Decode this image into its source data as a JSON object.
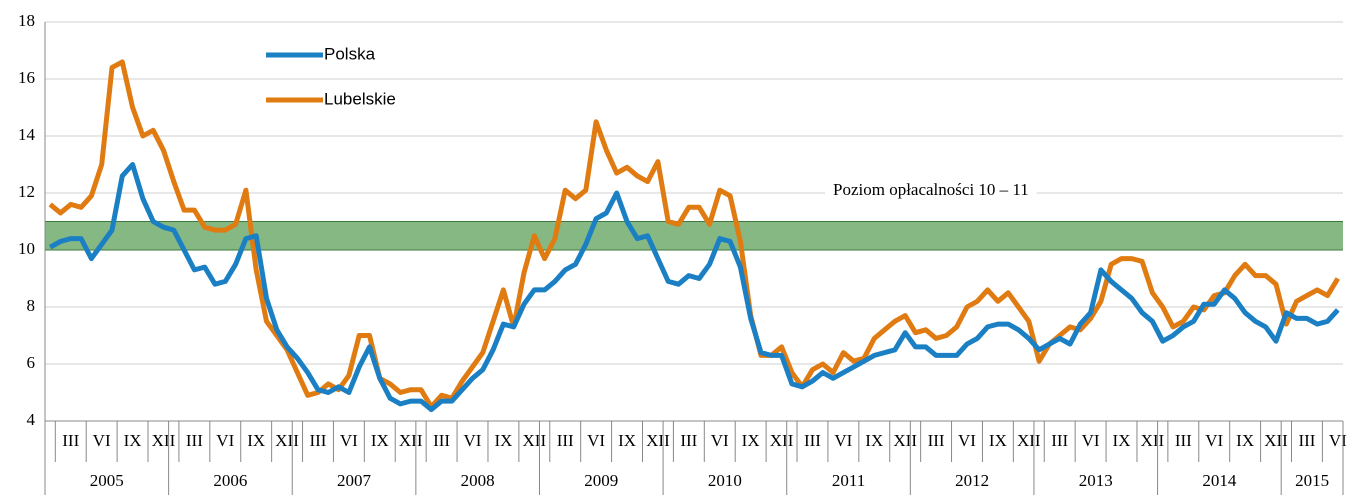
{
  "chart_data": {
    "type": "line",
    "categories": [
      null,
      null,
      "III",
      null,
      null,
      "VI",
      null,
      null,
      "IX",
      null,
      null,
      "XII",
      null,
      null,
      "III",
      null,
      null,
      "VI",
      null,
      null,
      "IX",
      null,
      null,
      "XII",
      null,
      null,
      "III",
      null,
      null,
      "VI",
      null,
      null,
      "IX",
      null,
      null,
      "XII",
      null,
      null,
      "III",
      null,
      null,
      "VI",
      null,
      null,
      "IX",
      null,
      null,
      "XII",
      null,
      null,
      "III",
      null,
      null,
      "VI",
      null,
      null,
      "IX",
      null,
      null,
      "XII",
      null,
      null,
      "III",
      null,
      null,
      "VI",
      null,
      null,
      "IX",
      null,
      null,
      "XII",
      null,
      null,
      "III",
      null,
      null,
      "VI",
      null,
      null,
      "IX",
      null,
      null,
      "XII",
      null,
      null,
      "III",
      null,
      null,
      "VI",
      null,
      null,
      "IX",
      null,
      null,
      "XII",
      null,
      null,
      "III",
      null,
      null,
      "VI",
      null,
      null,
      "IX",
      null,
      null,
      "XII",
      null,
      null,
      "III",
      null,
      null,
      "VI",
      null,
      null,
      "IX",
      null,
      null,
      "XII",
      null,
      null,
      "III",
      null,
      null,
      "VI"
    ],
    "years": [
      "2005",
      "2006",
      "2007",
      "2008",
      "2009",
      "2010",
      "2011",
      "2012",
      "2013",
      "2014",
      "2015"
    ],
    "series": [
      {
        "name": "Polska",
        "color": "#1b7fc4",
        "values": [
          10.1,
          10.3,
          10.4,
          10.4,
          9.7,
          10.2,
          10.7,
          12.6,
          13.0,
          11.8,
          11.0,
          10.8,
          10.7,
          10.0,
          9.3,
          9.4,
          8.8,
          8.9,
          9.5,
          10.4,
          10.5,
          8.3,
          7.2,
          6.6,
          6.2,
          5.7,
          5.1,
          5.0,
          5.2,
          5.0,
          5.9,
          6.6,
          5.5,
          4.8,
          4.6,
          4.7,
          4.7,
          4.4,
          4.7,
          4.7,
          5.1,
          5.5,
          5.8,
          6.5,
          7.4,
          7.3,
          8.1,
          8.6,
          8.6,
          8.9,
          9.3,
          9.5,
          10.2,
          11.1,
          11.3,
          12.0,
          11.0,
          10.4,
          10.5,
          9.7,
          8.9,
          8.8,
          9.1,
          9.0,
          9.5,
          10.4,
          10.3,
          9.4,
          7.6,
          6.4,
          6.3,
          6.3,
          5.3,
          5.2,
          5.4,
          5.7,
          5.5,
          5.7,
          5.9,
          6.1,
          6.3,
          6.4,
          6.5,
          7.1,
          6.6,
          6.6,
          6.3,
          6.3,
          6.3,
          6.7,
          6.9,
          7.3,
          7.4,
          7.4,
          7.2,
          6.9,
          6.5,
          6.7,
          6.9,
          6.7,
          7.4,
          7.8,
          9.3,
          8.9,
          8.6,
          8.3,
          7.8,
          7.5,
          6.8,
          7.0,
          7.3,
          7.5,
          8.1,
          8.1,
          8.6,
          8.3,
          7.8,
          7.5,
          7.3,
          6.8,
          7.8,
          7.6,
          7.6,
          7.4,
          7.5,
          7.9
        ]
      },
      {
        "name": "Lubelskie",
        "color": "#e07b12",
        "values": [
          11.6,
          11.3,
          11.6,
          11.5,
          11.9,
          13.0,
          16.4,
          16.6,
          15.0,
          14.0,
          14.2,
          13.5,
          12.4,
          11.4,
          11.4,
          10.8,
          10.7,
          10.7,
          10.9,
          12.1,
          9.3,
          7.5,
          7.0,
          6.5,
          5.7,
          4.9,
          5.0,
          5.3,
          5.1,
          5.6,
          7.0,
          7.0,
          5.5,
          5.3,
          5.0,
          5.1,
          5.1,
          4.5,
          4.9,
          4.8,
          5.4,
          5.9,
          6.4,
          7.5,
          8.6,
          7.3,
          9.2,
          10.5,
          9.7,
          10.4,
          12.1,
          11.8,
          12.1,
          14.5,
          13.5,
          12.7,
          12.9,
          12.6,
          12.4,
          13.1,
          11.0,
          10.9,
          11.5,
          11.5,
          10.9,
          12.1,
          11.9,
          10.3,
          7.7,
          6.3,
          6.3,
          6.6,
          5.7,
          5.2,
          5.8,
          6.0,
          5.7,
          6.4,
          6.1,
          6.2,
          6.9,
          7.2,
          7.5,
          7.7,
          7.1,
          7.2,
          6.9,
          7.0,
          7.3,
          8.0,
          8.2,
          8.6,
          8.2,
          8.5,
          8.0,
          7.5,
          6.1,
          6.7,
          7.0,
          7.3,
          7.2,
          7.6,
          8.2,
          9.5,
          9.7,
          9.7,
          9.6,
          8.5,
          8.0,
          7.3,
          7.5,
          8.0,
          7.9,
          8.4,
          8.5,
          9.1,
          9.5,
          9.1,
          9.1,
          8.8,
          7.4,
          8.2,
          8.4,
          8.6,
          8.4,
          9.0
        ]
      }
    ],
    "band": {
      "range": [
        10,
        11
      ],
      "color": "#86b884",
      "label": "Poziom opłacalności 10 – 11"
    },
    "ylim": [
      4,
      18
    ],
    "yticks": [
      4,
      6,
      8,
      10,
      12,
      14,
      16,
      18
    ],
    "grid": true,
    "legend": "top-left"
  }
}
